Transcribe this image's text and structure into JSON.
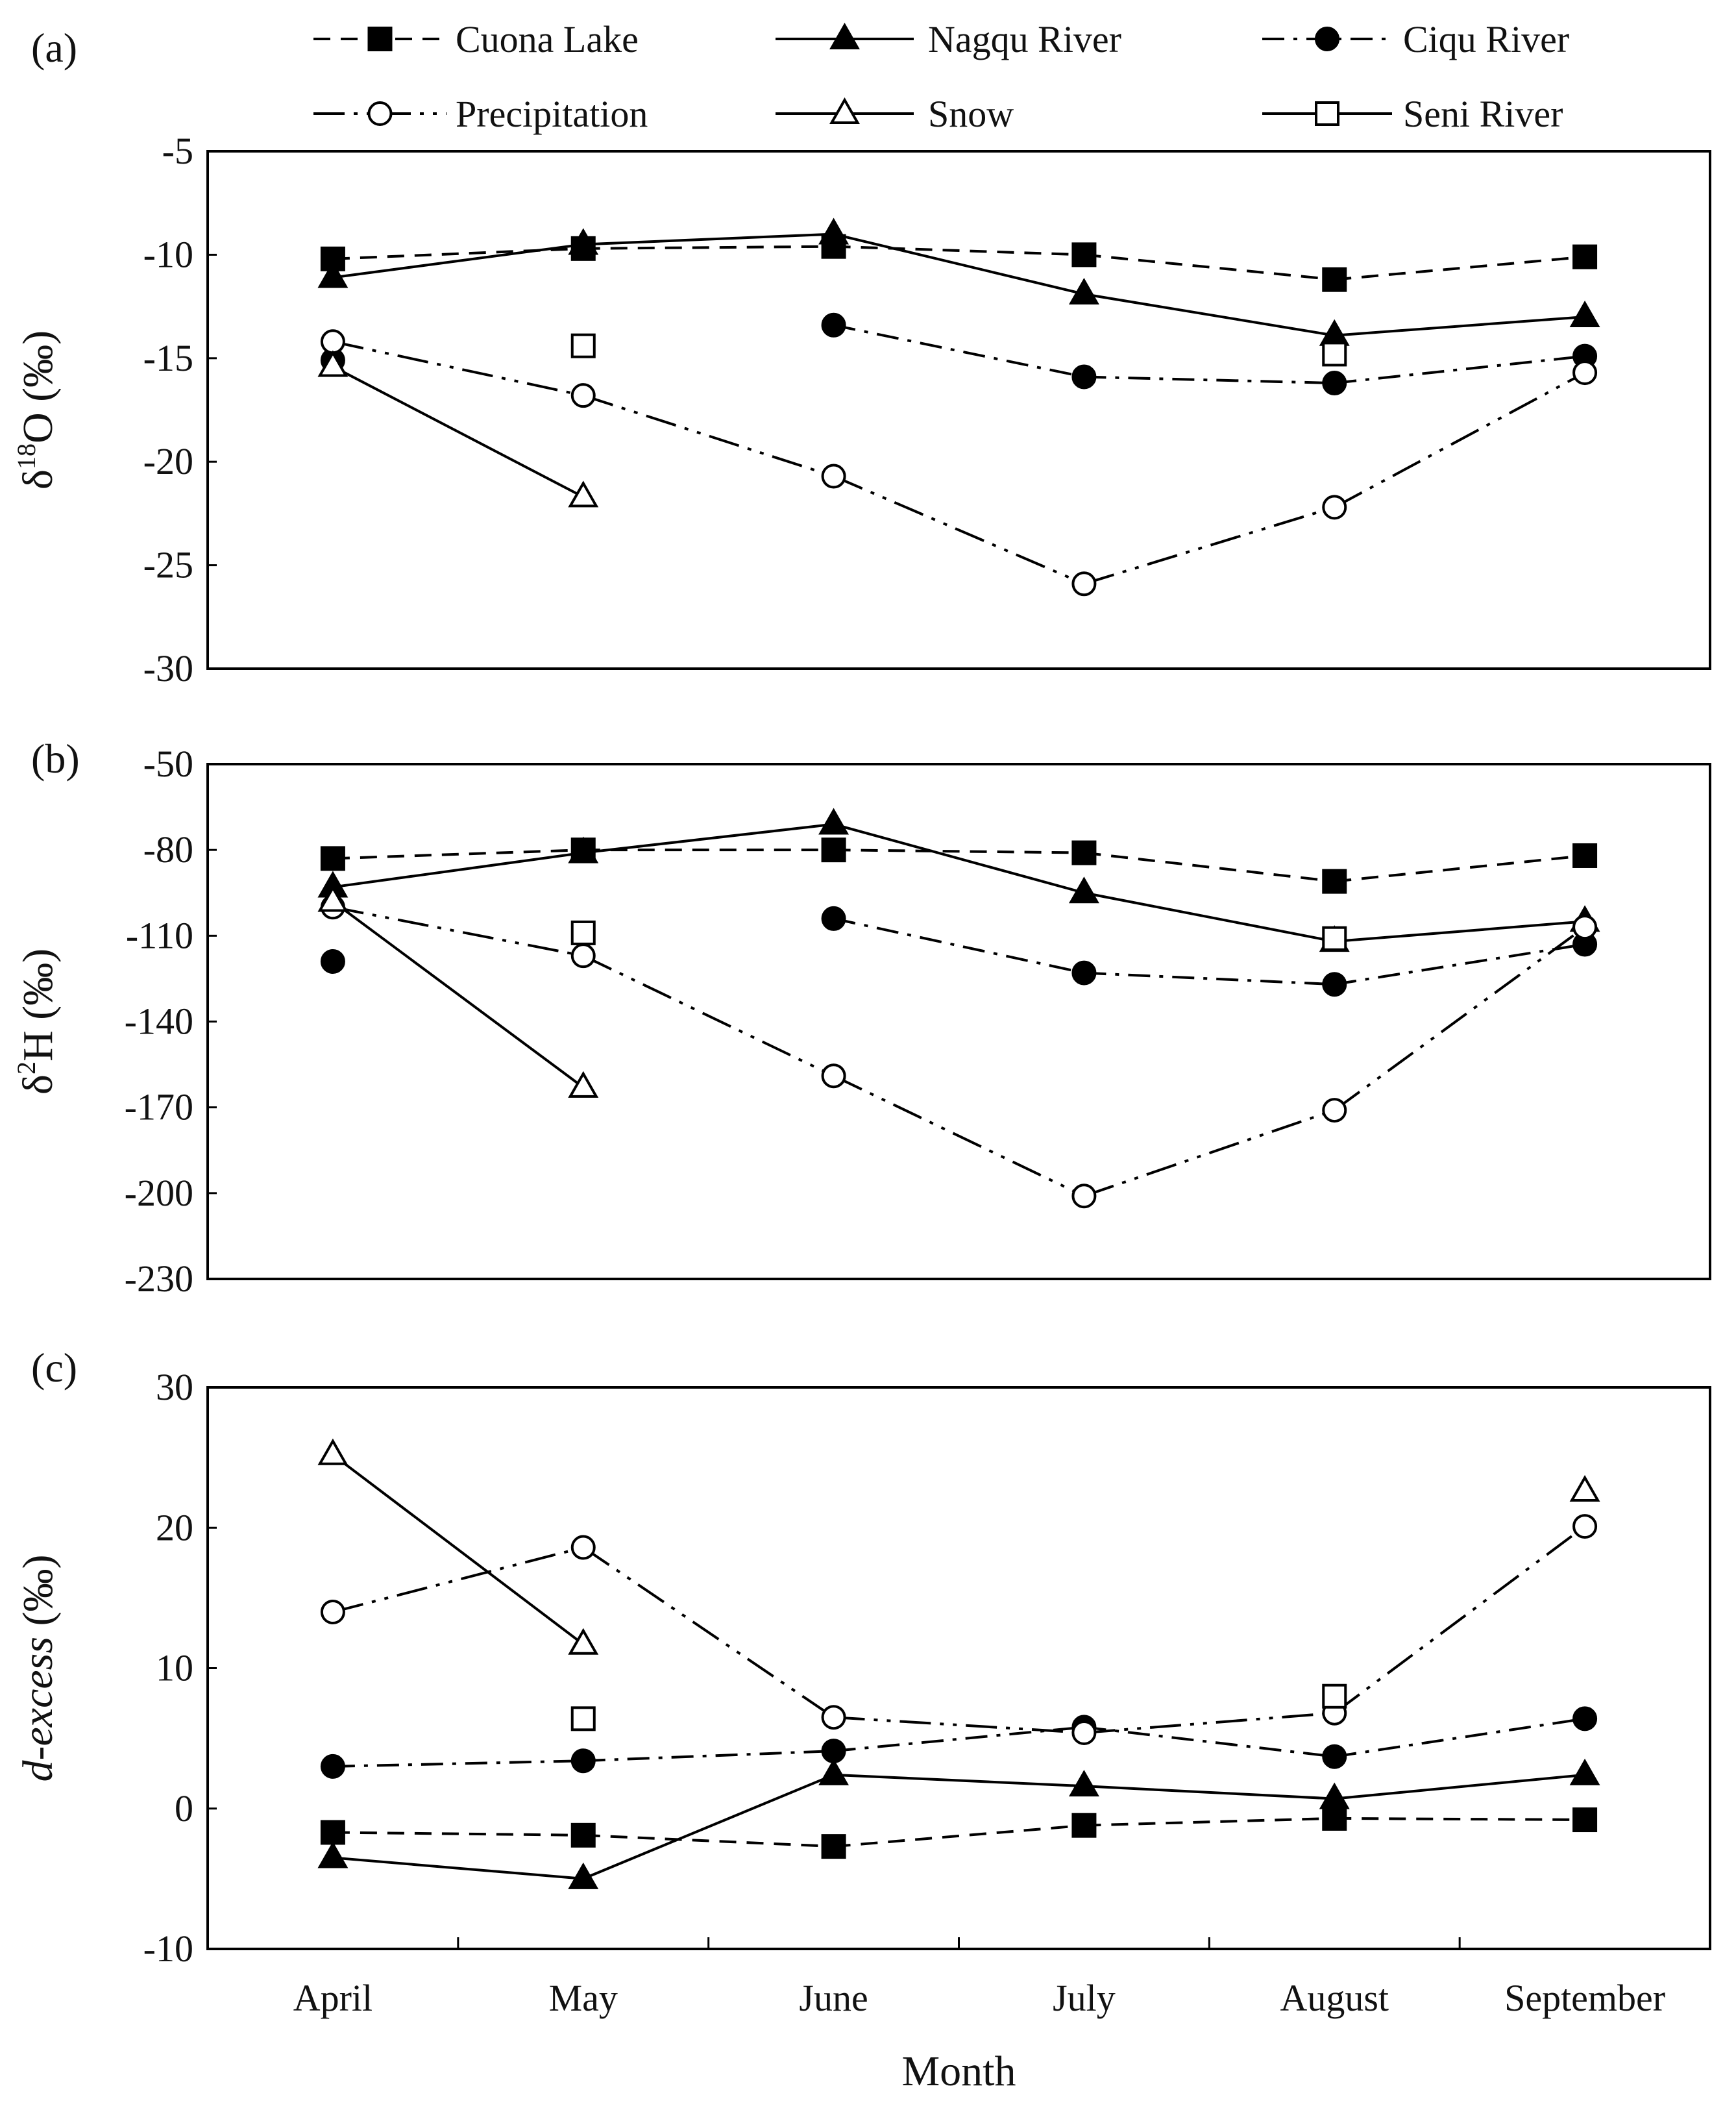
{
  "chart_data": [
    {
      "panel": "(a)",
      "type": "line",
      "ylabel_main": "δ",
      "ylabel_sup": "18",
      "ylabel_rest": "O (‰)",
      "ylim": [
        -30,
        -5
      ],
      "yticks": [
        -5,
        -10,
        -15,
        -20,
        -25,
        -30
      ],
      "categories": [
        "April",
        "May",
        "June",
        "July",
        "August",
        "September"
      ],
      "series": [
        {
          "name": "Cuona Lake",
          "values": [
            -10.2,
            -9.7,
            -9.6,
            -10.0,
            -11.2,
            -10.1
          ]
        },
        {
          "name": "Nagqu River",
          "values": [
            -11.1,
            -9.5,
            -9.0,
            -11.9,
            -13.9,
            -13.0
          ]
        },
        {
          "name": "Ciqu River",
          "values": [
            -15.1,
            null,
            -13.4,
            -15.9,
            -16.2,
            -14.9
          ]
        },
        {
          "name": "Precipitation",
          "values": [
            -14.2,
            -16.8,
            -20.7,
            -25.9,
            -22.2,
            -15.7
          ]
        },
        {
          "name": "Snow",
          "values": [
            -15.4,
            -21.7,
            null,
            null,
            null,
            null
          ]
        },
        {
          "name": "Seni River",
          "values": [
            null,
            -14.4,
            null,
            null,
            -14.8,
            null
          ]
        }
      ]
    },
    {
      "panel": "(b)",
      "type": "line",
      "ylabel_main": "δ",
      "ylabel_sup": "2",
      "ylabel_rest": "H (‰)",
      "ylim": [
        -230,
        -50
      ],
      "yticks": [
        -50,
        -80,
        -110,
        -140,
        -170,
        -200,
        -230
      ],
      "categories": [
        "April",
        "May",
        "June",
        "July",
        "August",
        "September"
      ],
      "series": [
        {
          "name": "Cuona Lake",
          "values": [
            -83,
            -80,
            -80,
            -81,
            -91,
            -82
          ]
        },
        {
          "name": "Nagqu River",
          "values": [
            -93,
            -81,
            -71,
            -95,
            -112,
            -105
          ]
        },
        {
          "name": "Ciqu River",
          "values": [
            -119,
            null,
            -104,
            -123,
            -127,
            -113
          ]
        },
        {
          "name": "Precipitation",
          "values": [
            -100,
            -117,
            -159,
            -201,
            -171,
            -107
          ]
        },
        {
          "name": "Snow",
          "values": [
            -98,
            -163,
            null,
            null,
            null,
            null
          ]
        },
        {
          "name": "Seni River",
          "values": [
            null,
            -109,
            null,
            null,
            -111,
            null
          ]
        }
      ]
    },
    {
      "panel": "(c)",
      "type": "line",
      "ylabel_main": "d-excess",
      "ylabel_sup": "",
      "ylabel_rest": " (‰)",
      "ylim": [
        -10,
        30
      ],
      "yticks": [
        30,
        20,
        10,
        0,
        -10
      ],
      "xlabel": "Month",
      "categories": [
        "April",
        "May",
        "June",
        "July",
        "August",
        "September"
      ],
      "series": [
        {
          "name": "Cuona Lake",
          "values": [
            -1.7,
            -1.9,
            -2.7,
            -1.2,
            -0.7,
            -0.8
          ]
        },
        {
          "name": "Nagqu River",
          "values": [
            -3.5,
            -5.0,
            2.4,
            1.6,
            0.7,
            2.4
          ]
        },
        {
          "name": "Ciqu River",
          "values": [
            3.0,
            3.4,
            4.1,
            5.8,
            3.7,
            6.4
          ]
        },
        {
          "name": "Precipitation",
          "values": [
            14.0,
            18.6,
            6.5,
            5.4,
            6.8,
            20.1
          ]
        },
        {
          "name": "Snow",
          "values": [
            25.2,
            11.7,
            null,
            null,
            null,
            22.6
          ]
        },
        {
          "name": "Seni River",
          "values": [
            null,
            6.4,
            null,
            null,
            8.0,
            null
          ]
        }
      ]
    }
  ],
  "legend": [
    {
      "name": "Cuona Lake",
      "marker": "square-filled",
      "dash": "dash"
    },
    {
      "name": "Nagqu River",
      "marker": "triangle-filled",
      "dash": "solid"
    },
    {
      "name": "Ciqu River",
      "marker": "circle-filled",
      "dash": "dashdot"
    },
    {
      "name": "Precipitation",
      "marker": "circle-open",
      "dash": "longdash"
    },
    {
      "name": "Snow",
      "marker": "triangle-open",
      "dash": "solid"
    },
    {
      "name": "Seni River",
      "marker": "square-open",
      "dash": "solid"
    }
  ],
  "colors": {
    "ink": "#000000",
    "background": "#ffffff"
  }
}
